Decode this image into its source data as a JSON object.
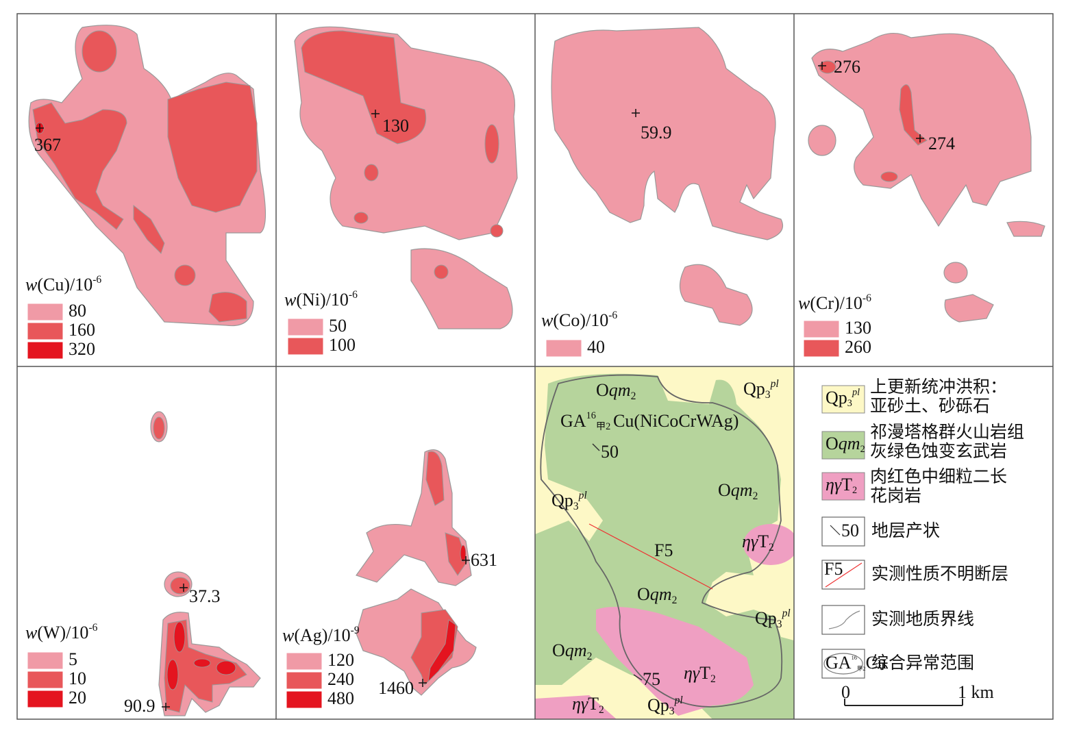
{
  "panels": [
    {
      "title": {
        "var": "w",
        "text": "(Cu)/10",
        "exp": "-6"
      },
      "legend": [
        80,
        160,
        320
      ],
      "peaks": [
        367
      ]
    },
    {
      "title": {
        "var": "w",
        "text": "(Ni)/10",
        "exp": "-6"
      },
      "legend": [
        50,
        100
      ],
      "peaks": [
        130
      ]
    },
    {
      "title": {
        "var": "w",
        "text": "(Co)/10",
        "exp": "-6"
      },
      "legend": [
        40
      ],
      "peaks": [
        59.9
      ]
    },
    {
      "title": {
        "var": "w",
        "text": "(Cr)/10",
        "exp": "-6"
      },
      "legend": [
        130,
        260
      ],
      "peaks": [
        276,
        274
      ]
    },
    {
      "title": {
        "var": "w",
        "text": "(W)/10",
        "exp": "-6"
      },
      "legend": [
        5,
        10,
        20
      ],
      "peaks": [
        37.3,
        90.9
      ]
    },
    {
      "title": {
        "var": "w",
        "text": "(Ag)/10",
        "exp": "-9"
      },
      "legend": [
        120,
        240,
        480
      ],
      "peaks": [
        631,
        1460
      ]
    }
  ],
  "level_colors": [
    "#f09aa6",
    "#e8575a",
    "#e4141f"
  ],
  "geology": {
    "units": [
      {
        "code": [
          "Qp",
          "3",
          "pl"
        ],
        "description": [
          "上更新统冲洪积：",
          "亚砂土、砂砾石"
        ],
        "color": "#fdf8c6"
      },
      {
        "code": [
          "O",
          "qm",
          "2"
        ],
        "description": [
          "祁漫塔格群火山岩组",
          "灰绿色蚀变玄武岩"
        ],
        "color": "#b6d49c"
      },
      {
        "code": [
          "ηγ",
          "T",
          "2"
        ],
        "description": [
          "肉红色中细粒二长",
          "花岗岩"
        ],
        "color": "#ef9fc2"
      }
    ],
    "strike_dips": [
      50,
      75
    ],
    "fault": "F5",
    "anomaly": {
      "prefix": "GA",
      "sup": "16",
      "sub": "甲2",
      "element": "Cu",
      "others": "(NiCoCrWAg)"
    },
    "legend": [
      "地层产状",
      "实测性质不明断层",
      "实测地质界线",
      "综合异常范围"
    ],
    "scale": {
      "start": 0,
      "end": "1 km"
    }
  }
}
